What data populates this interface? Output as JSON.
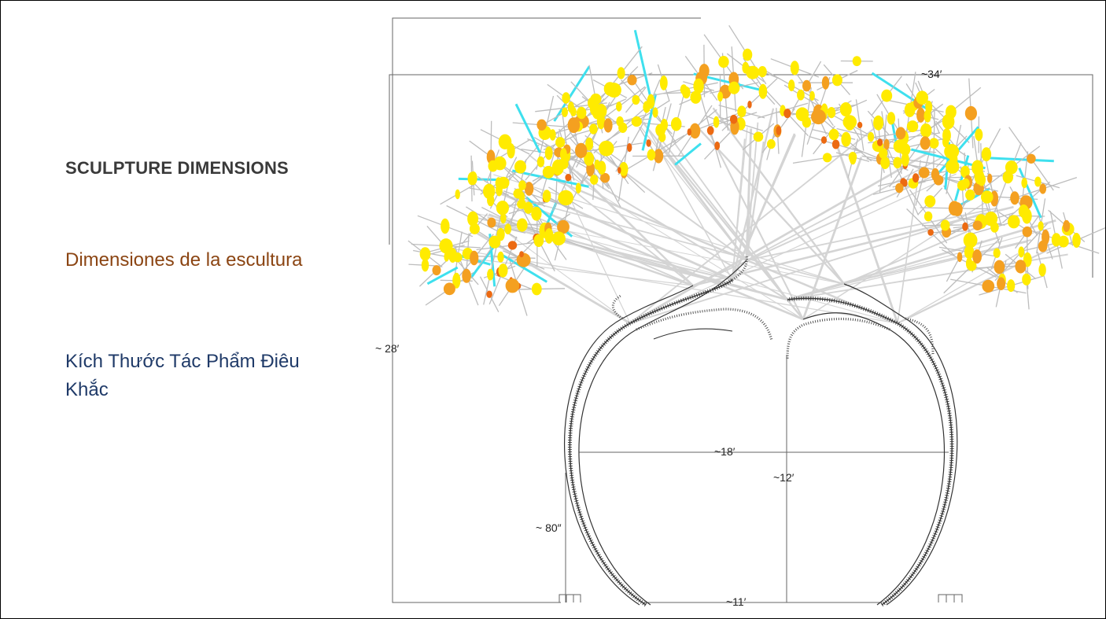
{
  "slide": {
    "heading_en": "SCULPTURE DIMENSIONS",
    "heading_es": "Dimensiones de la escultura",
    "heading_vi": "Kích Thước Tác Phẩm Điêu Khắc"
  },
  "diagram": {
    "dimensions": {
      "canopy_width": "~34′",
      "total_height": "~ 28′",
      "arch_width": "~18′",
      "arch_height": "~12′",
      "base_width": "~11′",
      "clearance": "~ 80″"
    },
    "colors": {
      "yellow_disc": "#ffeb00",
      "orange_disc": "#f4a020",
      "red_orange_disc": "#ec6a12",
      "cyan_stick": "#3ee0ee",
      "stick": "#bdbdbd",
      "line": "#555555"
    }
  }
}
